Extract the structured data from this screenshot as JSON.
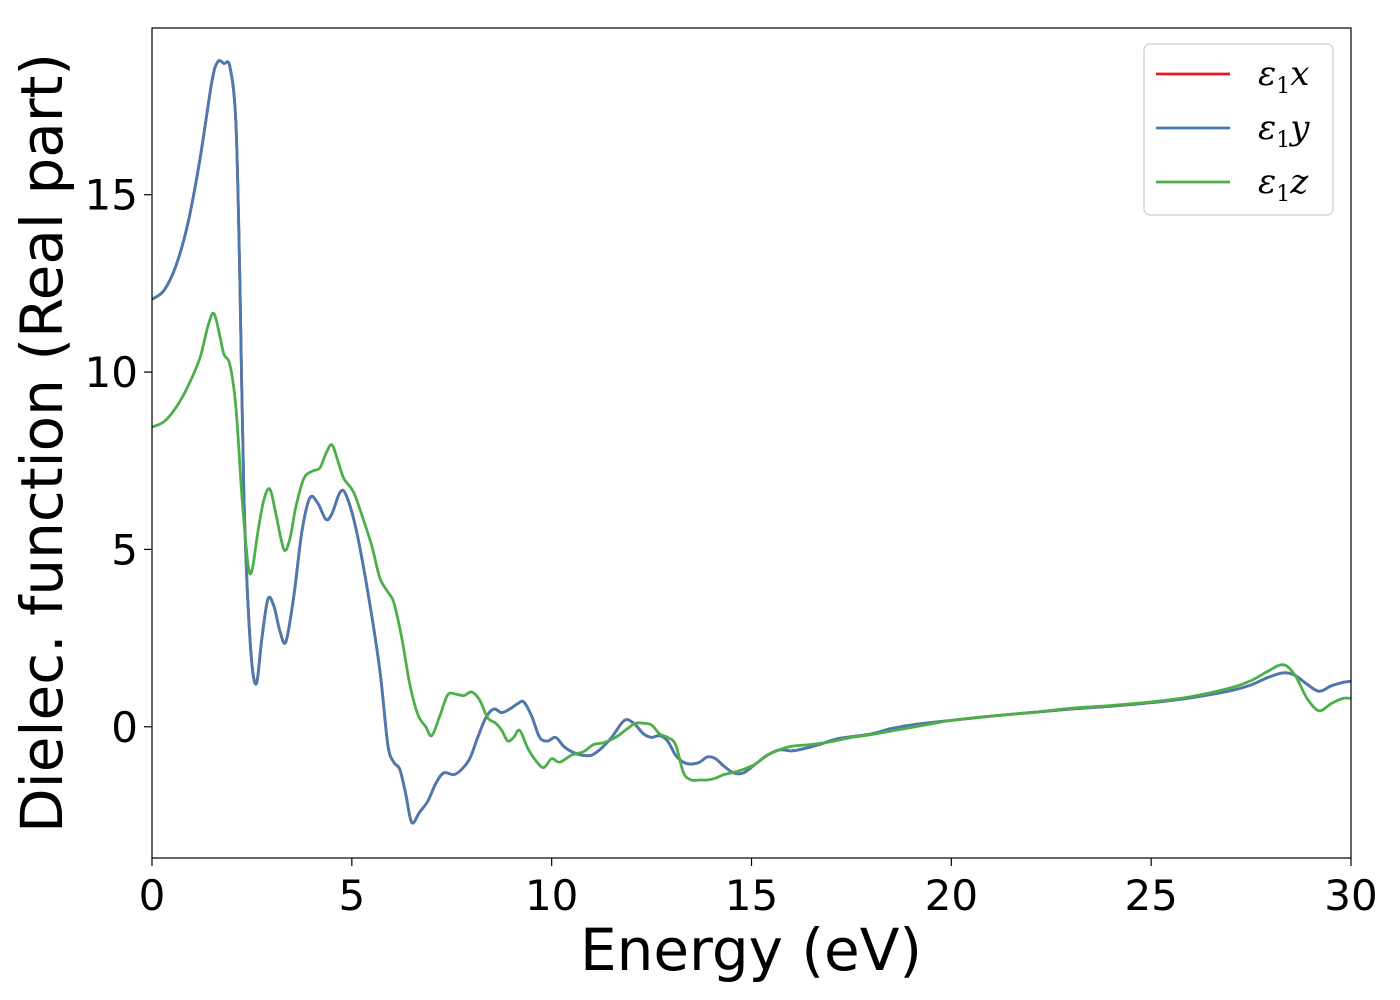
{
  "chart_data": {
    "type": "line",
    "xlabel": "Energy (eV)",
    "ylabel": "Dielec. function (Real part)",
    "xlim": [
      0,
      30
    ],
    "ylim": [
      -3.7,
      19.7
    ],
    "xticks": [
      0,
      5,
      10,
      15,
      20,
      25,
      30
    ],
    "yticks": [
      0,
      5,
      10,
      15
    ],
    "grid": false,
    "legend_position": "top-right",
    "series": [
      {
        "name": "ε1x",
        "legend_symbol": "ε",
        "legend_sub": "1",
        "legend_var": "x",
        "color": "#e41a1c",
        "points": [
          [
            0,
            12.05
          ],
          [
            0.3,
            12.3
          ],
          [
            0.6,
            13.0
          ],
          [
            0.9,
            14.2
          ],
          [
            1.2,
            16.0
          ],
          [
            1.5,
            18.2
          ],
          [
            1.65,
            18.75
          ],
          [
            1.8,
            18.7
          ],
          [
            1.95,
            18.6
          ],
          [
            2.1,
            17.0
          ],
          [
            2.2,
            12.5
          ],
          [
            2.3,
            6.5
          ],
          [
            2.45,
            2.5
          ],
          [
            2.6,
            1.2
          ],
          [
            2.75,
            2.5
          ],
          [
            2.9,
            3.6
          ],
          [
            3.05,
            3.4
          ],
          [
            3.2,
            2.7
          ],
          [
            3.35,
            2.4
          ],
          [
            3.55,
            3.7
          ],
          [
            3.75,
            5.5
          ],
          [
            3.95,
            6.45
          ],
          [
            4.15,
            6.3
          ],
          [
            4.35,
            5.85
          ],
          [
            4.5,
            6.0
          ],
          [
            4.7,
            6.6
          ],
          [
            4.85,
            6.55
          ],
          [
            5.1,
            5.6
          ],
          [
            5.4,
            3.8
          ],
          [
            5.7,
            1.6
          ],
          [
            5.9,
            -0.5
          ],
          [
            6.05,
            -1.0
          ],
          [
            6.2,
            -1.2
          ],
          [
            6.35,
            -1.9
          ],
          [
            6.5,
            -2.7
          ],
          [
            6.7,
            -2.4
          ],
          [
            6.9,
            -2.1
          ],
          [
            7.1,
            -1.6
          ],
          [
            7.3,
            -1.3
          ],
          [
            7.55,
            -1.35
          ],
          [
            7.75,
            -1.2
          ],
          [
            7.95,
            -0.9
          ],
          [
            8.15,
            -0.3
          ],
          [
            8.35,
            0.25
          ],
          [
            8.55,
            0.5
          ],
          [
            8.75,
            0.4
          ],
          [
            8.95,
            0.5
          ],
          [
            9.15,
            0.65
          ],
          [
            9.3,
            0.7
          ],
          [
            9.5,
            0.3
          ],
          [
            9.7,
            -0.3
          ],
          [
            9.9,
            -0.4
          ],
          [
            10.1,
            -0.3
          ],
          [
            10.3,
            -0.55
          ],
          [
            10.5,
            -0.7
          ],
          [
            10.75,
            -0.8
          ],
          [
            11.0,
            -0.8
          ],
          [
            11.25,
            -0.6
          ],
          [
            11.5,
            -0.3
          ],
          [
            11.75,
            0.1
          ],
          [
            11.9,
            0.2
          ],
          [
            12.1,
            0.05
          ],
          [
            12.3,
            -0.2
          ],
          [
            12.5,
            -0.3
          ],
          [
            12.7,
            -0.25
          ],
          [
            12.9,
            -0.4
          ],
          [
            13.1,
            -0.8
          ],
          [
            13.3,
            -1.0
          ],
          [
            13.5,
            -1.05
          ],
          [
            13.7,
            -1.0
          ],
          [
            13.9,
            -0.85
          ],
          [
            14.1,
            -0.9
          ],
          [
            14.3,
            -1.1
          ],
          [
            14.55,
            -1.3
          ],
          [
            14.8,
            -1.3
          ],
          [
            15.1,
            -1.05
          ],
          [
            15.4,
            -0.8
          ],
          [
            15.7,
            -0.65
          ],
          [
            16.0,
            -0.68
          ],
          [
            16.3,
            -0.62
          ],
          [
            16.7,
            -0.5
          ],
          [
            17.1,
            -0.35
          ],
          [
            17.5,
            -0.28
          ],
          [
            18.0,
            -0.2
          ],
          [
            18.5,
            -0.05
          ],
          [
            19.0,
            0.05
          ],
          [
            19.5,
            0.12
          ],
          [
            20.0,
            0.18
          ],
          [
            21.0,
            0.3
          ],
          [
            22.0,
            0.4
          ],
          [
            23.0,
            0.5
          ],
          [
            24.0,
            0.58
          ],
          [
            25.0,
            0.68
          ],
          [
            26.0,
            0.82
          ],
          [
            27.0,
            1.02
          ],
          [
            27.5,
            1.18
          ],
          [
            27.9,
            1.38
          ],
          [
            28.3,
            1.52
          ],
          [
            28.6,
            1.45
          ],
          [
            28.9,
            1.2
          ],
          [
            29.2,
            1.0
          ],
          [
            29.5,
            1.15
          ],
          [
            29.8,
            1.25
          ],
          [
            30.0,
            1.28
          ]
        ]
      },
      {
        "name": "ε1y",
        "legend_symbol": "ε",
        "legend_sub": "1",
        "legend_var": "y",
        "color": "#4a7bb0",
        "points": [
          [
            0,
            12.05
          ],
          [
            0.3,
            12.3
          ],
          [
            0.6,
            13.0
          ],
          [
            0.9,
            14.2
          ],
          [
            1.2,
            16.0
          ],
          [
            1.5,
            18.2
          ],
          [
            1.65,
            18.75
          ],
          [
            1.8,
            18.7
          ],
          [
            1.95,
            18.6
          ],
          [
            2.1,
            17.0
          ],
          [
            2.2,
            12.5
          ],
          [
            2.3,
            6.5
          ],
          [
            2.45,
            2.5
          ],
          [
            2.6,
            1.2
          ],
          [
            2.75,
            2.5
          ],
          [
            2.9,
            3.6
          ],
          [
            3.05,
            3.4
          ],
          [
            3.2,
            2.7
          ],
          [
            3.35,
            2.4
          ],
          [
            3.55,
            3.7
          ],
          [
            3.75,
            5.5
          ],
          [
            3.95,
            6.45
          ],
          [
            4.15,
            6.3
          ],
          [
            4.35,
            5.85
          ],
          [
            4.5,
            6.0
          ],
          [
            4.7,
            6.6
          ],
          [
            4.85,
            6.55
          ],
          [
            5.1,
            5.6
          ],
          [
            5.4,
            3.8
          ],
          [
            5.7,
            1.6
          ],
          [
            5.9,
            -0.5
          ],
          [
            6.05,
            -1.0
          ],
          [
            6.2,
            -1.2
          ],
          [
            6.35,
            -1.9
          ],
          [
            6.5,
            -2.7
          ],
          [
            6.7,
            -2.4
          ],
          [
            6.9,
            -2.1
          ],
          [
            7.1,
            -1.6
          ],
          [
            7.3,
            -1.3
          ],
          [
            7.55,
            -1.35
          ],
          [
            7.75,
            -1.2
          ],
          [
            7.95,
            -0.9
          ],
          [
            8.15,
            -0.3
          ],
          [
            8.35,
            0.25
          ],
          [
            8.55,
            0.5
          ],
          [
            8.75,
            0.4
          ],
          [
            8.95,
            0.5
          ],
          [
            9.15,
            0.65
          ],
          [
            9.3,
            0.7
          ],
          [
            9.5,
            0.3
          ],
          [
            9.7,
            -0.3
          ],
          [
            9.9,
            -0.4
          ],
          [
            10.1,
            -0.3
          ],
          [
            10.3,
            -0.55
          ],
          [
            10.5,
            -0.7
          ],
          [
            10.75,
            -0.8
          ],
          [
            11.0,
            -0.8
          ],
          [
            11.25,
            -0.6
          ],
          [
            11.5,
            -0.3
          ],
          [
            11.75,
            0.1
          ],
          [
            11.9,
            0.2
          ],
          [
            12.1,
            0.05
          ],
          [
            12.3,
            -0.2
          ],
          [
            12.5,
            -0.3
          ],
          [
            12.7,
            -0.25
          ],
          [
            12.9,
            -0.4
          ],
          [
            13.1,
            -0.8
          ],
          [
            13.3,
            -1.0
          ],
          [
            13.5,
            -1.05
          ],
          [
            13.7,
            -1.0
          ],
          [
            13.9,
            -0.85
          ],
          [
            14.1,
            -0.9
          ],
          [
            14.3,
            -1.1
          ],
          [
            14.55,
            -1.3
          ],
          [
            14.8,
            -1.3
          ],
          [
            15.1,
            -1.05
          ],
          [
            15.4,
            -0.8
          ],
          [
            15.7,
            -0.65
          ],
          [
            16.0,
            -0.68
          ],
          [
            16.3,
            -0.62
          ],
          [
            16.7,
            -0.5
          ],
          [
            17.1,
            -0.35
          ],
          [
            17.5,
            -0.28
          ],
          [
            18.0,
            -0.2
          ],
          [
            18.5,
            -0.05
          ],
          [
            19.0,
            0.05
          ],
          [
            19.5,
            0.12
          ],
          [
            20.0,
            0.18
          ],
          [
            21.0,
            0.3
          ],
          [
            22.0,
            0.4
          ],
          [
            23.0,
            0.5
          ],
          [
            24.0,
            0.58
          ],
          [
            25.0,
            0.68
          ],
          [
            26.0,
            0.82
          ],
          [
            27.0,
            1.02
          ],
          [
            27.5,
            1.18
          ],
          [
            27.9,
            1.38
          ],
          [
            28.3,
            1.52
          ],
          [
            28.6,
            1.45
          ],
          [
            28.9,
            1.2
          ],
          [
            29.2,
            1.0
          ],
          [
            29.5,
            1.15
          ],
          [
            29.8,
            1.25
          ],
          [
            30.0,
            1.28
          ]
        ]
      },
      {
        "name": "ε1z",
        "legend_symbol": "ε",
        "legend_sub": "1",
        "legend_var": "z",
        "color": "#4daf4a",
        "points": [
          [
            0,
            8.45
          ],
          [
            0.3,
            8.6
          ],
          [
            0.6,
            9.0
          ],
          [
            0.9,
            9.6
          ],
          [
            1.2,
            10.4
          ],
          [
            1.4,
            11.3
          ],
          [
            1.55,
            11.65
          ],
          [
            1.7,
            11.0
          ],
          [
            1.8,
            10.5
          ],
          [
            1.95,
            10.2
          ],
          [
            2.1,
            9.0
          ],
          [
            2.25,
            6.5
          ],
          [
            2.4,
            4.6
          ],
          [
            2.5,
            4.4
          ],
          [
            2.65,
            5.5
          ],
          [
            2.8,
            6.4
          ],
          [
            2.95,
            6.7
          ],
          [
            3.1,
            6.0
          ],
          [
            3.3,
            5.0
          ],
          [
            3.45,
            5.3
          ],
          [
            3.6,
            6.2
          ],
          [
            3.8,
            7.0
          ],
          [
            4.0,
            7.2
          ],
          [
            4.2,
            7.3
          ],
          [
            4.35,
            7.7
          ],
          [
            4.5,
            7.95
          ],
          [
            4.65,
            7.5
          ],
          [
            4.8,
            7.0
          ],
          [
            5.05,
            6.6
          ],
          [
            5.3,
            5.8
          ],
          [
            5.5,
            5.1
          ],
          [
            5.7,
            4.2
          ],
          [
            5.9,
            3.8
          ],
          [
            6.05,
            3.5
          ],
          [
            6.25,
            2.5
          ],
          [
            6.45,
            1.2
          ],
          [
            6.65,
            0.35
          ],
          [
            6.85,
            0.0
          ],
          [
            7.0,
            -0.25
          ],
          [
            7.2,
            0.3
          ],
          [
            7.4,
            0.9
          ],
          [
            7.6,
            0.92
          ],
          [
            7.8,
            0.88
          ],
          [
            8.0,
            0.98
          ],
          [
            8.2,
            0.75
          ],
          [
            8.4,
            0.25
          ],
          [
            8.6,
            0.1
          ],
          [
            8.75,
            -0.1
          ],
          [
            8.9,
            -0.4
          ],
          [
            9.05,
            -0.3
          ],
          [
            9.2,
            -0.1
          ],
          [
            9.4,
            -0.6
          ],
          [
            9.6,
            -0.95
          ],
          [
            9.8,
            -1.15
          ],
          [
            10.0,
            -0.9
          ],
          [
            10.2,
            -1.0
          ],
          [
            10.5,
            -0.8
          ],
          [
            10.8,
            -0.7
          ],
          [
            11.05,
            -0.5
          ],
          [
            11.3,
            -0.45
          ],
          [
            11.6,
            -0.3
          ],
          [
            11.9,
            -0.05
          ],
          [
            12.1,
            0.1
          ],
          [
            12.3,
            0.1
          ],
          [
            12.5,
            0.05
          ],
          [
            12.7,
            -0.2
          ],
          [
            12.9,
            -0.3
          ],
          [
            13.1,
            -0.5
          ],
          [
            13.3,
            -1.3
          ],
          [
            13.5,
            -1.5
          ],
          [
            13.7,
            -1.5
          ],
          [
            13.9,
            -1.5
          ],
          [
            14.1,
            -1.45
          ],
          [
            14.3,
            -1.35
          ],
          [
            14.5,
            -1.3
          ],
          [
            14.8,
            -1.2
          ],
          [
            15.1,
            -1.05
          ],
          [
            15.4,
            -0.8
          ],
          [
            15.7,
            -0.65
          ],
          [
            16.0,
            -0.55
          ],
          [
            16.5,
            -0.5
          ],
          [
            17.0,
            -0.42
          ],
          [
            17.5,
            -0.3
          ],
          [
            18.0,
            -0.22
          ],
          [
            18.5,
            -0.12
          ],
          [
            19.0,
            -0.02
          ],
          [
            19.5,
            0.08
          ],
          [
            20.0,
            0.18
          ],
          [
            21.0,
            0.3
          ],
          [
            22.0,
            0.4
          ],
          [
            23.0,
            0.52
          ],
          [
            24.0,
            0.6
          ],
          [
            25.0,
            0.7
          ],
          [
            26.0,
            0.85
          ],
          [
            27.0,
            1.1
          ],
          [
            27.5,
            1.3
          ],
          [
            27.9,
            1.55
          ],
          [
            28.3,
            1.75
          ],
          [
            28.6,
            1.45
          ],
          [
            28.9,
            0.8
          ],
          [
            29.2,
            0.45
          ],
          [
            29.5,
            0.65
          ],
          [
            29.8,
            0.8
          ],
          [
            30.0,
            0.8
          ]
        ]
      }
    ]
  }
}
